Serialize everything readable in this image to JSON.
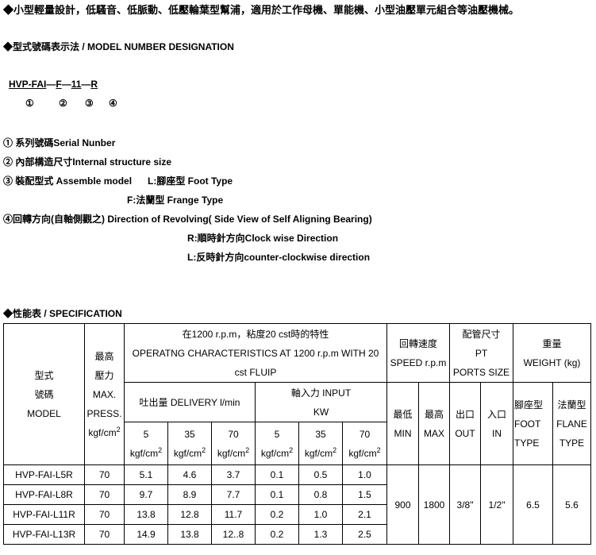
{
  "intro": "◆小型輕量設計，低騷音、低脈動、低壓輪葉型幫浦，適用於工作母機、單能機、小型油壓單元組合等油壓機械。",
  "designation": {
    "title": "◆型式號碼表示法 / MODEL NUMBER DESIGNATION",
    "code": [
      "HVP-FAI",
      "F",
      "11",
      "R"
    ],
    "sep": "—",
    "markers": [
      "①",
      "②",
      "③",
      "④"
    ],
    "lines": [
      "① 系列號碼Serial Nunber",
      "② 內部構造尺寸Internal structure size",
      "③ 裝配型式 Assemble model",
      "L:腳座型 Foot Type",
      "F:法蘭型 Frange Type",
      "④回轉方向(自軸側觀之) Direction of Revolving( Side View of Self Aligning Bearing)",
      "R:順時針方向Clock wise Direction",
      "L:反時針方向counter-clockwise direction"
    ]
  },
  "spec": {
    "title": "◆性能表 / SPECIFICATION",
    "h": {
      "model": [
        "型式",
        "號碼",
        "MODEL"
      ],
      "press": [
        "最高",
        "壓力",
        "MAX.",
        "PRESS.",
        "kgf/cm",
        "2"
      ],
      "op": [
        "在1200 r.p.m，粘度20 cst時的特性",
        "OPERATNG CHARACTERISTICS AT 1200 r.p.m WITH 20 cst FLUIP"
      ],
      "speed": [
        "回轉速度",
        "SPEED r.p.m"
      ],
      "ports": [
        "配管尺寸",
        "PT",
        "PORTS SIZE"
      ],
      "weight": [
        "重量",
        "WEIGHT (kg)"
      ],
      "delivery": "吐出量 DELIVERY l/min",
      "input": [
        "軸入力  INPUT",
        "KW"
      ],
      "p": [
        "5",
        "35",
        "70",
        "5",
        "35",
        "70"
      ],
      "unit": "kgf/cm",
      "sup": "2",
      "min": [
        "最低",
        "MIN"
      ],
      "max": [
        "最高",
        "MAX"
      ],
      "out": [
        "出口",
        "OUT"
      ],
      "in": [
        "入口",
        "IN"
      ],
      "foot": [
        "腳座型",
        "FOOT",
        "TYPE"
      ],
      "flane": [
        "法蘭型",
        "FLANE",
        "TYPE"
      ]
    },
    "rows": [
      [
        "HVP-FAI-L5R",
        "70",
        "5.1",
        "4.6",
        "3.7",
        "0.1",
        "0.5",
        "1.0"
      ],
      [
        "HVP-FAI-L8R",
        "70",
        "9.7",
        "8.9",
        "7.7",
        "0.1",
        "0.8",
        "1.5"
      ],
      [
        "HVP-FAI-L11R",
        "70",
        "13.8",
        "12.8",
        "11.7",
        "0.2",
        "1.0",
        "2.1"
      ],
      [
        "HVP-FAI-L13R",
        "70",
        "14.9",
        "13.8",
        "12..8",
        "0.2",
        "1.3",
        "2.5"
      ]
    ],
    "shared": [
      "900",
      "1800",
      "3/8\"",
      "1/2\"",
      "6.5",
      "5.6"
    ]
  }
}
